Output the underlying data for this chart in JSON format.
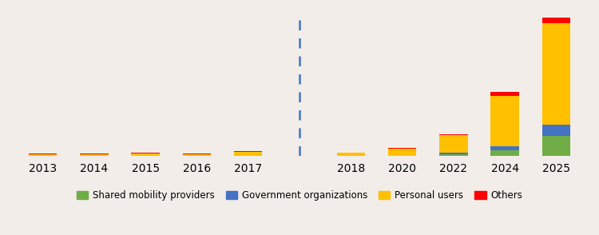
{
  "years": [
    "2013",
    "2014",
    "2015",
    "2016",
    "2017",
    "",
    "2018",
    "2020",
    "2022",
    "2024",
    "2025"
  ],
  "x_positions": [
    0,
    1,
    2,
    3,
    4,
    5,
    6,
    7,
    8,
    9,
    10
  ],
  "shared_mobility": [
    0.05,
    0.05,
    0.1,
    0.05,
    0.15,
    0,
    0.05,
    0.2,
    1.5,
    4.0,
    14.0
  ],
  "government": [
    0.05,
    0.05,
    0.05,
    0.05,
    0.1,
    0,
    0.05,
    0.15,
    0.8,
    3.0,
    8.0
  ],
  "personal": [
    1.2,
    1.4,
    1.8,
    1.3,
    2.5,
    0,
    2.0,
    4.5,
    12.0,
    35.0,
    70.0
  ],
  "others": [
    0.4,
    0.4,
    0.6,
    0.4,
    0.6,
    0,
    0.5,
    0.8,
    0.8,
    2.5,
    4.0
  ],
  "colors": {
    "shared_mobility": "#70ad47",
    "government": "#4472c4",
    "personal": "#ffc000",
    "others": "#ff0000"
  },
  "labels": {
    "shared_mobility": "Shared mobility providers",
    "government": "Government organizations",
    "personal": "Personal users",
    "others": "Others"
  },
  "dashed_line_x": 5.0,
  "dashed_line_color": "#4472c4",
  "background_color": "#f2ede8",
  "grid_color": "#ffffff",
  "ylim": [
    0,
    100
  ]
}
